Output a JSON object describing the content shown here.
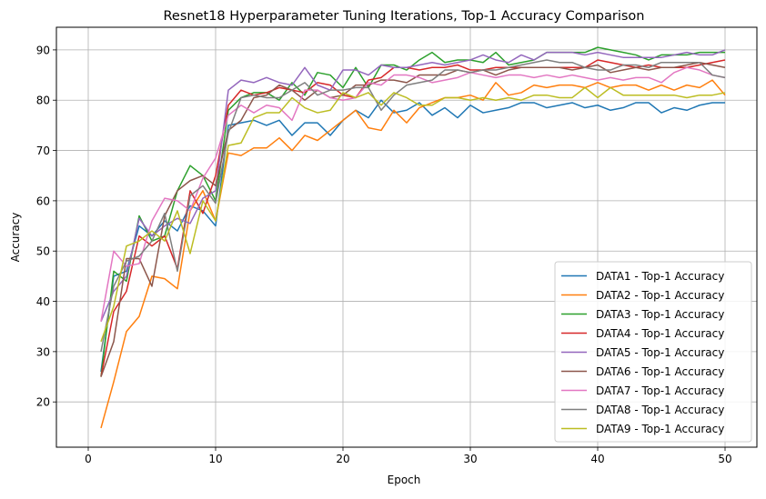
{
  "chart_data": {
    "type": "line",
    "title": "Resnet18 Hyperparameter Tuning Iterations, Top-1 Accuracy Comparison",
    "xlabel": "Epoch",
    "ylabel": "Accuracy",
    "xlim": [
      -2.5,
      52.5
    ],
    "ylim": [
      11,
      94.5
    ],
    "xticks": [
      0,
      10,
      20,
      30,
      40,
      50
    ],
    "yticks": [
      20,
      30,
      40,
      50,
      60,
      70,
      80,
      90
    ],
    "grid": true,
    "legend_position": "lower-right",
    "x": [
      1,
      2,
      3,
      4,
      5,
      6,
      7,
      8,
      9,
      10,
      11,
      12,
      13,
      14,
      15,
      16,
      17,
      18,
      19,
      20,
      21,
      22,
      23,
      24,
      25,
      26,
      27,
      28,
      29,
      30,
      31,
      32,
      33,
      34,
      35,
      36,
      37,
      38,
      39,
      40,
      41,
      42,
      43,
      44,
      45,
      46,
      47,
      48,
      49,
      50
    ],
    "series": [
      {
        "name": "DATA1 - Top-1 Accuracy",
        "color": "#1f77b4",
        "values": [
          26,
          45,
          46,
          55,
          53,
          56,
          54,
          59,
          58,
          55,
          75,
          75.5,
          76,
          75,
          76,
          73,
          75.5,
          75.5,
          73,
          76,
          78,
          76.5,
          80,
          77.5,
          78,
          79.5,
          77,
          78.5,
          76.5,
          79,
          77.5,
          78,
          78.5,
          79.5,
          79.5,
          78.5,
          79,
          79.5,
          78.5,
          79,
          78,
          78.5,
          79.5,
          79.5,
          77.5,
          78.5,
          78,
          79,
          79.5,
          79.5
        ]
      },
      {
        "name": "DATA2 - Top-1 Accuracy",
        "color": "#ff7f0e",
        "values": [
          14.8,
          24,
          34,
          37,
          45,
          44.5,
          42.5,
          58,
          62,
          56,
          69.5,
          69,
          70.5,
          70.5,
          72.5,
          70,
          73,
          72,
          74,
          76,
          78,
          74.5,
          74,
          78,
          75.5,
          78.5,
          79.5,
          80.5,
          80.5,
          81,
          80,
          83.5,
          81,
          81.5,
          83,
          82.5,
          83,
          83,
          82.5,
          83.5,
          82.5,
          83,
          83,
          82,
          83,
          82,
          83,
          82.5,
          84,
          81
        ]
      },
      {
        "name": "DATA3 - Top-1 Accuracy",
        "color": "#2ca02c",
        "values": [
          25,
          46,
          44,
          57,
          52,
          53,
          62,
          67,
          65,
          60,
          78,
          80.5,
          81.5,
          81.5,
          80,
          83.5,
          81,
          85.5,
          85,
          82.5,
          86.5,
          82.5,
          87,
          87,
          86,
          88,
          89.5,
          87.5,
          88,
          88,
          87.5,
          89.5,
          87,
          87.5,
          88,
          89.5,
          89.5,
          89.5,
          89.5,
          90.5,
          90,
          89.5,
          89,
          88,
          89,
          89,
          89,
          89.5,
          89.5,
          89.5
        ]
      },
      {
        "name": "DATA4 - Top-1 Accuracy",
        "color": "#d62728",
        "values": [
          25,
          38,
          42,
          53,
          51,
          53,
          46.5,
          62,
          57.5,
          65,
          79,
          82,
          81,
          81.5,
          82.5,
          82,
          81.5,
          83.5,
          83,
          81,
          80.5,
          84,
          84.5,
          86.5,
          86.5,
          86,
          86.5,
          86.5,
          87,
          86,
          86,
          86.5,
          86.5,
          86.5,
          86.5,
          86.5,
          86.5,
          86.5,
          86.5,
          88,
          87.5,
          87,
          86.5,
          87,
          86.5,
          86.5,
          86.5,
          87,
          87.5,
          88
        ]
      },
      {
        "name": "DATA5 - Top-1 Accuracy",
        "color": "#9467bd",
        "values": [
          36,
          42,
          45,
          56.5,
          53,
          55,
          56.5,
          55.5,
          60.5,
          62,
          82,
          84,
          83.5,
          84.5,
          83.5,
          83,
          86.5,
          83,
          82,
          86,
          86,
          85,
          87,
          86.5,
          86.5,
          87,
          87.5,
          87,
          87.5,
          88,
          89,
          88,
          87.5,
          89,
          88,
          89.5,
          89.5,
          89.5,
          89,
          89.5,
          89,
          88.5,
          88.5,
          88.5,
          88.5,
          89,
          89.5,
          89,
          89,
          90
        ]
      },
      {
        "name": "DATA6 - Top-1 Accuracy",
        "color": "#8c564b",
        "values": [
          25,
          32,
          48.5,
          48.5,
          43,
          57,
          62,
          64,
          65,
          63,
          74,
          76,
          80.5,
          81,
          83,
          82,
          80,
          82,
          80.5,
          81,
          83,
          83,
          84,
          84,
          83.5,
          85,
          85,
          85,
          86,
          85.5,
          86,
          85,
          86,
          86.5,
          86.5,
          86.5,
          86.5,
          86,
          86.5,
          87,
          85.5,
          86,
          86.5,
          86,
          86.5,
          86.5,
          87,
          87.5,
          87,
          86.5
        ]
      },
      {
        "name": "DATA7 - Top-1 Accuracy",
        "color": "#e377c2",
        "values": [
          36,
          50,
          47,
          47.5,
          56,
          60.5,
          60,
          58,
          64.5,
          68.5,
          77,
          79,
          77.5,
          79,
          78.5,
          76,
          82,
          82,
          80.5,
          80,
          80.5,
          83.5,
          83,
          85,
          85,
          84.5,
          83.5,
          84,
          84.5,
          85.5,
          85,
          84.5,
          85,
          85,
          84.5,
          85,
          84.5,
          85,
          84.5,
          84,
          84.5,
          84,
          84.5,
          84.5,
          83.5,
          85.5,
          86.5,
          86,
          85,
          84.5
        ]
      },
      {
        "name": "DATA8 - Top-1 Accuracy",
        "color": "#7f7f7f",
        "values": [
          30,
          43,
          48,
          49,
          52,
          57.5,
          46,
          61,
          63,
          59.5,
          73.5,
          80.5,
          81,
          80.5,
          80.5,
          82,
          83.5,
          81,
          82,
          82,
          82.5,
          82.5,
          78,
          81,
          83,
          83.5,
          84,
          86,
          86,
          85.5,
          86,
          86,
          86.5,
          87,
          87.5,
          88,
          87.5,
          87.5,
          86.5,
          86,
          86,
          87,
          87,
          86.5,
          87.5,
          87.5,
          87.5,
          87.5,
          85,
          84.5
        ]
      },
      {
        "name": "DATA9 - Top-1 Accuracy",
        "color": "#bcbd22",
        "values": [
          32,
          39,
          51,
          52,
          54,
          52,
          58,
          49.5,
          60,
          56,
          71,
          71.5,
          76.5,
          77.5,
          77.5,
          80.5,
          78.5,
          77.5,
          78,
          81.5,
          80.5,
          81.5,
          79,
          81.5,
          80.5,
          79,
          79,
          80.5,
          80.5,
          80,
          80.5,
          80,
          80.5,
          80,
          81,
          81,
          80.5,
          80.5,
          82.5,
          80.5,
          82.5,
          81,
          81,
          81,
          81,
          81,
          80.5,
          81,
          81,
          81.5
        ]
      }
    ]
  }
}
